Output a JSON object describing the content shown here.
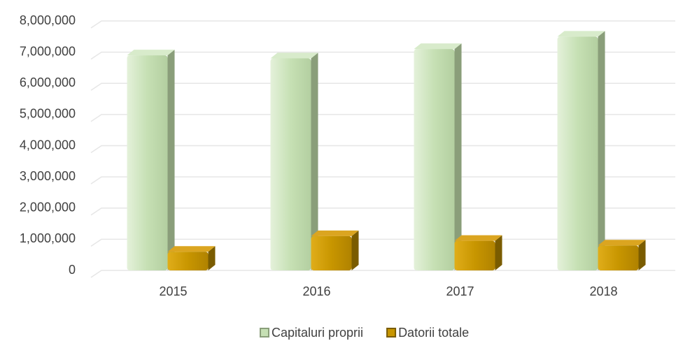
{
  "chart_data": {
    "type": "bar3d",
    "categories": [
      "2015",
      "2016",
      "2017",
      "2018"
    ],
    "series": [
      {
        "name": "Capitaluri proprii",
        "color": "#c6e0b4",
        "values": [
          6900000,
          6800000,
          7100000,
          7500000
        ]
      },
      {
        "name": "Datorii totale",
        "color": "#c89600",
        "values": [
          600000,
          1100000,
          950000,
          800000
        ]
      }
    ],
    "ylim": [
      0,
      8000000
    ],
    "yticks": [
      0,
      {
        "value": 1000000,
        "label": "1,000,000"
      },
      {
        "value": 2000000,
        "label": "2,000,000"
      },
      {
        "value": 3000000,
        "label": "3,000,000"
      },
      {
        "value": 4000000,
        "label": "4,000,000"
      },
      {
        "value": 5000000,
        "label": "5,000,000"
      },
      {
        "value": 6000000,
        "label": "6,000,000"
      },
      {
        "value": 7000000,
        "label": "7,000,000"
      },
      {
        "value": 8000000,
        "label": "8,000,000"
      }
    ],
    "grid": true,
    "legend": "bottom"
  }
}
